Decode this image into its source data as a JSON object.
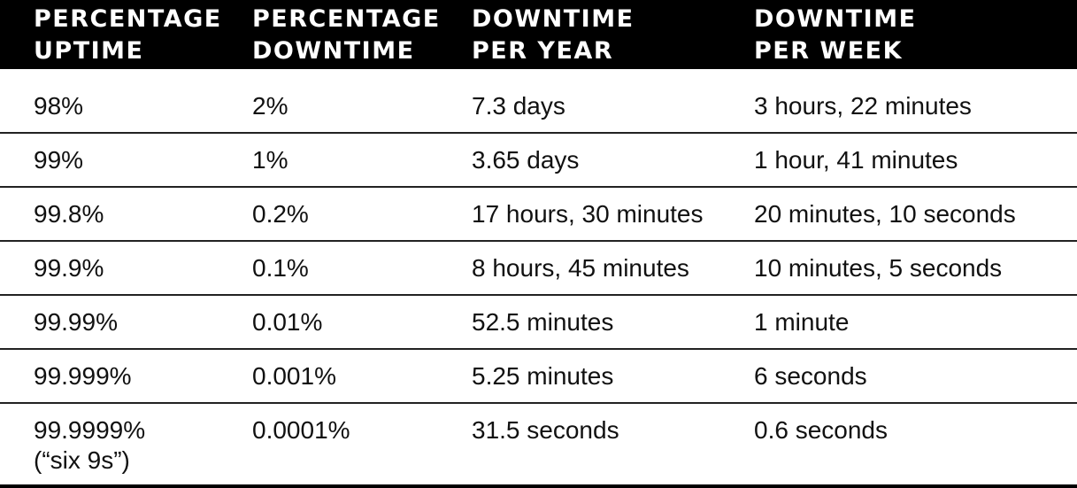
{
  "table": {
    "headers": [
      "PERCENTAGE\nUPTIME",
      "PERCENTAGE\nDOWNTIME",
      "DOWNTIME\nPER YEAR",
      "DOWNTIME\nPER WEEK"
    ],
    "rows": [
      [
        "98%",
        "2%",
        "7.3 days",
        "3 hours, 22 minutes"
      ],
      [
        "99%",
        "1%",
        "3.65 days",
        "1 hour, 41 minutes"
      ],
      [
        "99.8%",
        "0.2%",
        "17 hours, 30 minutes",
        "20 minutes, 10 seconds"
      ],
      [
        "99.9%",
        "0.1%",
        "8 hours, 45 minutes",
        "10 minutes, 5 seconds"
      ],
      [
        "99.99%",
        "0.01%",
        "52.5 minutes",
        "1 minute"
      ],
      [
        "99.999%",
        "0.001%",
        "5.25 minutes",
        "6 seconds"
      ],
      [
        "99.9999%\n(“six 9s”)",
        "0.0001%",
        "31.5 seconds",
        "0.6 seconds"
      ]
    ]
  },
  "colors": {
    "header_background": "#000000",
    "header_text": "#ffffff",
    "body_text": "#111111",
    "rule": "#222222"
  }
}
